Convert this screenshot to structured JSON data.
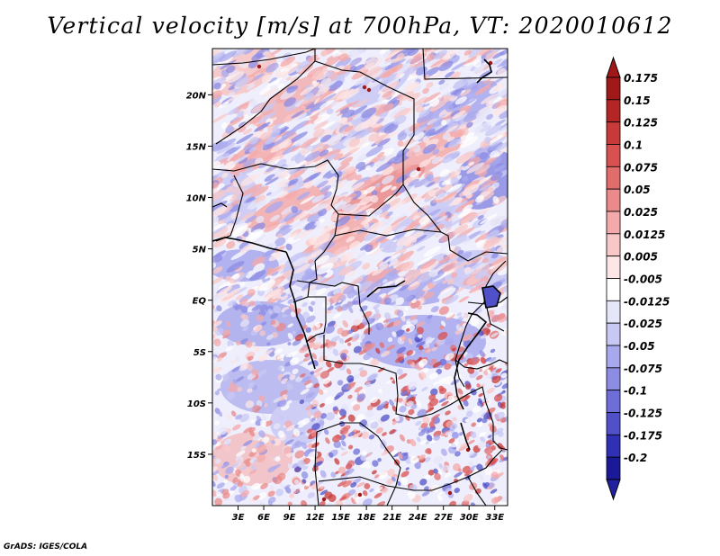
{
  "title": "Vertical velocity [m/s] at 700hPa, VT: 2020010612",
  "footer": "GrADS: IGES/COLA",
  "map": {
    "region": "Central Africa",
    "lon_range": [
      0,
      34.5
    ],
    "lat_range": [
      -20,
      24.5
    ],
    "lat_ticks": [
      {
        "value": 20,
        "label": "20N"
      },
      {
        "value": 15,
        "label": "15N"
      },
      {
        "value": 10,
        "label": "10N"
      },
      {
        "value": 5,
        "label": "5N"
      },
      {
        "value": 0,
        "label": "EQ"
      },
      {
        "value": -5,
        "label": "5S"
      },
      {
        "value": -10,
        "label": "10S"
      },
      {
        "value": -15,
        "label": "15S"
      }
    ],
    "lon_ticks": [
      {
        "value": 3,
        "label": "3E"
      },
      {
        "value": 6,
        "label": "6E"
      },
      {
        "value": 9,
        "label": "9E"
      },
      {
        "value": 12,
        "label": "12E"
      },
      {
        "value": 15,
        "label": "15E"
      },
      {
        "value": 18,
        "label": "18E"
      },
      {
        "value": 21,
        "label": "21E"
      },
      {
        "value": 24,
        "label": "24E"
      },
      {
        "value": 27,
        "label": "27E"
      },
      {
        "value": 30,
        "label": "30E"
      },
      {
        "value": 33,
        "label": "33E"
      }
    ]
  },
  "colorbar": {
    "levels": [
      {
        "label": "0.175",
        "color": "#a01818"
      },
      {
        "label": "0.15",
        "color": "#b42626"
      },
      {
        "label": "0.125",
        "color": "#c83a3a"
      },
      {
        "label": "0.1",
        "color": "#d85050"
      },
      {
        "label": "0.075",
        "color": "#e06c6c"
      },
      {
        "label": "0.05",
        "color": "#ea8a8a"
      },
      {
        "label": "0.025",
        "color": "#f4aaaa"
      },
      {
        "label": "0.0125",
        "color": "#f8c8c8"
      },
      {
        "label": "0.005",
        "color": "#fce6e6"
      },
      {
        "label": "-0.005",
        "color": "#ffffff"
      },
      {
        "label": "-0.0125",
        "color": "#e6e6fa"
      },
      {
        "label": "-0.025",
        "color": "#c8c8f4"
      },
      {
        "label": "-0.05",
        "color": "#a8a8ee"
      },
      {
        "label": "-0.075",
        "color": "#8c8ce4"
      },
      {
        "label": "-0.1",
        "color": "#6e6ed8"
      },
      {
        "label": "-0.125",
        "color": "#5050c8"
      },
      {
        "label": "-0.175",
        "color": "#3030b4"
      },
      {
        "label": "-0.2",
        "color": "#1a1a98"
      }
    ],
    "top_cap_color": "#a01818",
    "bottom_cap_color": "#2020a0"
  }
}
